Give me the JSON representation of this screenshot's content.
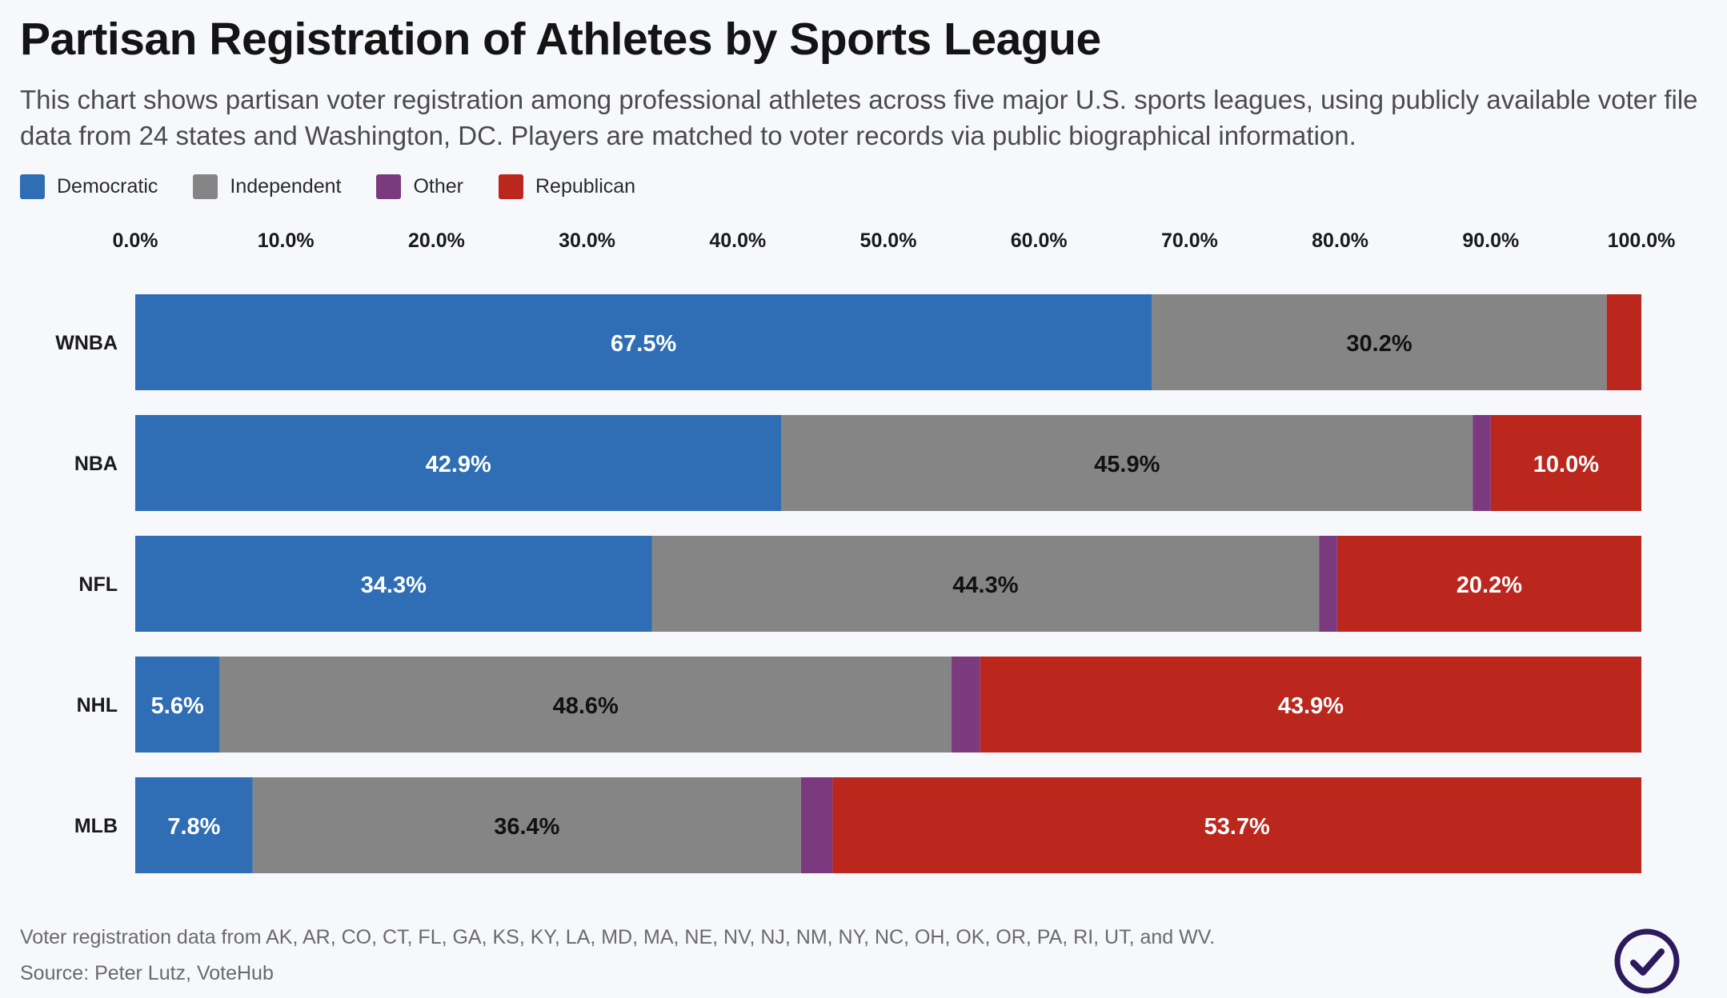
{
  "header": {
    "title": "Partisan Registration of Athletes by Sports League",
    "subtitle": "This chart shows partisan voter registration among professional athletes across five major U.S. sports leagues, using publicly available voter file data from 24 states and Washington, DC. Players are matched to voter records via public biographical information."
  },
  "colors": {
    "Democratic": "#2f6db4",
    "Independent": "#858585",
    "Other": "#7b3a7d",
    "Republican": "#bb261d",
    "background": "#f7f8fc"
  },
  "legend": [
    {
      "label": "Democratic",
      "color": "#2f6db4"
    },
    {
      "label": "Independent",
      "color": "#858585"
    },
    {
      "label": "Other",
      "color": "#7b3a7d"
    },
    {
      "label": "Republican",
      "color": "#bb261d"
    }
  ],
  "chart_data": {
    "type": "bar",
    "orientation": "horizontal",
    "stacked": true,
    "title": "Partisan Registration of Athletes by Sports League",
    "xlabel": "",
    "ylabel": "",
    "xlim": [
      0,
      100
    ],
    "x_ticks": [
      "0.0%",
      "10.0%",
      "20.0%",
      "30.0%",
      "40.0%",
      "50.0%",
      "60.0%",
      "70.0%",
      "80.0%",
      "90.0%",
      "100.0%"
    ],
    "x_tick_values": [
      0,
      10,
      20,
      30,
      40,
      50,
      60,
      70,
      80,
      90,
      100
    ],
    "axis_position": "top",
    "grid": false,
    "legend_position": "top-left",
    "categories": [
      "WNBA",
      "NBA",
      "NFL",
      "NHL",
      "MLB"
    ],
    "series": [
      {
        "name": "Democratic",
        "values": [
          67.5,
          42.9,
          34.3,
          5.6,
          7.8
        ],
        "labels": [
          "67.5%",
          "42.9%",
          "34.3%",
          "5.6%",
          "7.8%"
        ],
        "label_color": "#ffffff"
      },
      {
        "name": "Independent",
        "values": [
          30.2,
          45.9,
          44.3,
          48.6,
          36.4
        ],
        "labels": [
          "30.2%",
          "45.9%",
          "44.3%",
          "48.6%",
          "36.4%"
        ],
        "label_color": "#111111"
      },
      {
        "name": "Other",
        "values": [
          0.0,
          1.2,
          1.2,
          1.9,
          2.1
        ],
        "labels": [
          "",
          "",
          "",
          "",
          ""
        ],
        "label_color": "#ffffff"
      },
      {
        "name": "Republican",
        "values": [
          2.3,
          10.0,
          20.2,
          43.9,
          53.7
        ],
        "labels": [
          "",
          "10.0%",
          "20.2%",
          "43.9%",
          "53.7%"
        ],
        "label_color": "#ffffff"
      }
    ]
  },
  "footer": {
    "note": "Voter registration data from AK, AR, CO, CT, FL, GA, KS, KY, LA, MD, MA, NE, NV, NJ, NM, NY, NC, OH, OK, OR, PA, RI, UT, and WV.",
    "source": "Source: Peter Lutz, VoteHub"
  },
  "logo": {
    "icon": "checkmark-circle-icon",
    "color": "#2d1a5e"
  }
}
